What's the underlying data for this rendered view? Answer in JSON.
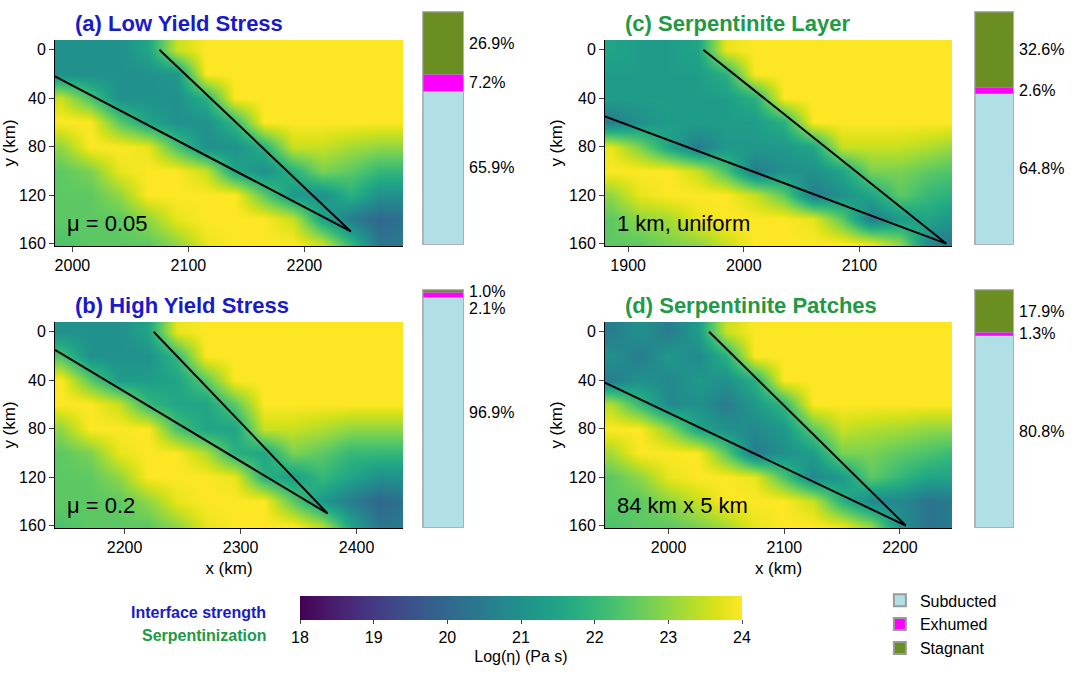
{
  "chart_data": [
    {
      "type": "heatmap",
      "title": "(a) Low Yield Stress",
      "color": "#1a1acd",
      "annotation": "μ = 0.05",
      "y_label": "y (km)",
      "xlim": [
        1985,
        2285
      ],
      "xticks": [
        2000,
        2100,
        2200
      ],
      "ylim": [
        162,
        -8
      ],
      "yticks": [
        0,
        40,
        80,
        120,
        160
      ],
      "x": [
        1990,
        2015,
        2040,
        2065,
        2090,
        2115,
        2140,
        2165,
        2190,
        2215,
        2240,
        2265,
        2290
      ],
      "y": [
        0,
        20,
        40,
        60,
        80,
        100,
        120,
        140,
        160
      ],
      "z": [
        [
          21,
          21,
          21,
          21.5,
          23.5,
          24,
          24,
          24,
          24,
          24,
          24,
          24,
          24
        ],
        [
          21,
          21,
          21,
          21,
          21.2,
          24,
          24,
          24,
          24,
          24,
          24,
          24,
          24
        ],
        [
          23.5,
          22.3,
          21,
          21,
          21,
          21.8,
          24,
          24,
          24,
          24,
          24,
          24,
          24
        ],
        [
          24,
          24,
          22.5,
          21.5,
          21,
          21,
          22,
          24,
          24,
          24,
          24,
          24,
          24
        ],
        [
          23,
          24,
          24,
          23.8,
          22.3,
          21,
          21,
          21.8,
          23.5,
          23.5,
          23.2,
          23,
          23
        ],
        [
          22.5,
          22.8,
          23.8,
          24,
          24,
          23.5,
          21.5,
          21,
          21.8,
          22.8,
          22.5,
          22,
          22
        ],
        [
          22.5,
          22.5,
          23,
          24,
          24,
          24,
          24,
          22.5,
          21.2,
          21,
          21.8,
          21,
          21
        ],
        [
          22.5,
          22.5,
          22.5,
          23,
          23.8,
          24,
          24,
          24,
          23.5,
          21.5,
          20.5,
          20,
          20.3
        ],
        [
          22.3,
          22.5,
          22.5,
          22.5,
          23,
          23.8,
          24,
          24,
          24,
          23.5,
          22,
          20.3,
          20.5
        ]
      ],
      "series": [
        {
          "type": "line",
          "color": "#000000",
          "x": [
            1985,
            2240
          ],
          "y": [
            22,
            150
          ]
        },
        {
          "type": "line",
          "color": "#000000",
          "x": [
            2075,
            2240
          ],
          "y": [
            0,
            150
          ]
        }
      ]
    },
    {
      "type": "heatmap",
      "title": "(b) High Yield Stress",
      "color": "#1a1acd",
      "annotation": "μ = 0.2",
      "x_label": "x (km)",
      "y_label": "y (km)",
      "xlim": [
        2140,
        2440
      ],
      "xticks": [
        2200,
        2300,
        2400
      ],
      "ylim": [
        162,
        -8
      ],
      "yticks": [
        0,
        40,
        80,
        120,
        160
      ],
      "x": [
        2145,
        2170,
        2195,
        2220,
        2245,
        2270,
        2295,
        2320,
        2345,
        2370,
        2395,
        2420,
        2445
      ],
      "y": [
        0,
        20,
        40,
        60,
        80,
        100,
        120,
        140,
        160
      ],
      "z": [
        [
          21,
          21,
          21,
          21.5,
          23.8,
          24,
          24,
          24,
          24,
          24,
          24,
          24,
          24
        ],
        [
          22.3,
          21,
          21,
          21,
          22,
          24,
          24,
          24,
          24,
          24,
          24,
          24,
          24
        ],
        [
          24,
          22.5,
          21.3,
          21.3,
          21.5,
          22.5,
          24,
          24,
          24,
          24,
          24,
          24,
          24
        ],
        [
          24,
          24,
          23.5,
          22,
          21.5,
          21.5,
          22.5,
          24,
          24,
          24,
          24,
          24,
          24
        ],
        [
          23,
          24,
          24,
          24,
          22.3,
          21.5,
          21.5,
          23.5,
          23.5,
          23.3,
          23,
          23,
          23
        ],
        [
          22.5,
          22.8,
          23.8,
          24,
          24,
          23.3,
          21.8,
          21.5,
          22.8,
          22.5,
          22,
          22,
          22
        ],
        [
          22.5,
          22.5,
          23,
          24,
          24,
          24,
          23.8,
          21.8,
          21.3,
          22,
          21.5,
          21,
          21
        ],
        [
          22.5,
          22.5,
          22.5,
          23,
          23.8,
          24,
          24,
          24,
          22.5,
          21.2,
          20.5,
          20,
          20.3
        ],
        [
          22.3,
          22.5,
          22.5,
          22.5,
          23,
          23.8,
          24,
          24,
          24,
          23.3,
          21.5,
          20.3,
          20.5
        ]
      ],
      "series": [
        {
          "type": "line",
          "color": "#000000",
          "x": [
            2140,
            2375
          ],
          "y": [
            15,
            150
          ]
        },
        {
          "type": "line",
          "color": "#000000",
          "x": [
            2225,
            2375
          ],
          "y": [
            0,
            150
          ]
        }
      ]
    },
    {
      "type": "heatmap",
      "title": "(c) Serpentinite Layer",
      "color": "#229944",
      "annotation": "1 km, uniform",
      "y_label": "y (km)",
      "xlim": [
        1880,
        2180
      ],
      "xticks": [
        1900,
        2000,
        2100
      ],
      "ylim": [
        162,
        -8
      ],
      "yticks": [
        0,
        40,
        80,
        120,
        160
      ],
      "x": [
        1885,
        1910,
        1935,
        1960,
        1985,
        2010,
        2035,
        2060,
        2085,
        2110,
        2135,
        2160,
        2185
      ],
      "y": [
        0,
        20,
        40,
        60,
        80,
        100,
        120,
        140,
        160
      ],
      "z": [
        [
          21.5,
          21.3,
          21.3,
          21.5,
          23.8,
          24,
          24,
          24,
          24,
          24,
          24,
          24,
          24
        ],
        [
          21.3,
          21.3,
          21.3,
          21.3,
          21.8,
          24,
          24,
          24,
          24,
          24,
          24,
          24,
          24
        ],
        [
          21.3,
          21.3,
          21.3,
          21.3,
          21.3,
          21.8,
          24,
          24,
          24,
          24,
          24,
          24,
          24
        ],
        [
          20.5,
          21,
          21.3,
          21.3,
          21.3,
          21.3,
          21.8,
          24,
          24,
          24,
          24,
          24,
          24
        ],
        [
          23.8,
          22.8,
          21.5,
          20.5,
          21.2,
          21.2,
          21.2,
          21.5,
          23.5,
          23.5,
          23.5,
          23.3,
          23
        ],
        [
          24,
          24,
          24,
          23.5,
          22.3,
          20.5,
          21,
          21,
          21.5,
          22.8,
          22.8,
          22.5,
          22.3
        ],
        [
          23,
          23.8,
          24,
          24,
          24,
          23.5,
          22.5,
          20.5,
          21,
          21.5,
          22.5,
          22,
          21.8
        ],
        [
          22.5,
          23,
          23.2,
          23.8,
          24,
          24,
          24,
          23.8,
          22.5,
          20.5,
          21.2,
          21.5,
          21
        ],
        [
          22.5,
          22.5,
          22.8,
          23,
          23.5,
          24,
          24,
          24,
          24,
          23.8,
          23,
          20.8,
          20.3
        ]
      ],
      "series": [
        {
          "type": "line",
          "color": "#000000",
          "x": [
            1880,
            2175
          ],
          "y": [
            55,
            160
          ]
        },
        {
          "type": "line",
          "color": "#000000",
          "x": [
            1965,
            2175
          ],
          "y": [
            0,
            160
          ]
        }
      ]
    },
    {
      "type": "heatmap",
      "title": "(d) Serpentinite Patches",
      "color": "#229944",
      "annotation": "84 km x 5 km",
      "x_label": "x (km)",
      "y_label": "y (km)",
      "xlim": [
        1945,
        2245
      ],
      "xticks": [
        2000,
        2100,
        2200
      ],
      "ylim": [
        162,
        -8
      ],
      "yticks": [
        0,
        40,
        80,
        120,
        160
      ],
      "x": [
        1950,
        1975,
        2000,
        2025,
        2050,
        2075,
        2100,
        2125,
        2150,
        2175,
        2200,
        2225,
        2250
      ],
      "y": [
        0,
        20,
        40,
        60,
        80,
        100,
        120,
        140,
        160
      ],
      "z": [
        [
          20.5,
          21,
          20.5,
          21.3,
          23.5,
          24,
          24,
          24,
          24,
          24,
          24,
          24,
          24
        ],
        [
          21,
          20.5,
          21.2,
          20.8,
          21.8,
          24,
          24,
          24,
          24,
          24,
          24,
          24,
          24
        ],
        [
          20.5,
          21,
          20.8,
          21.2,
          21,
          21.8,
          24,
          24,
          24,
          24,
          24,
          24,
          24
        ],
        [
          23.3,
          22,
          20.8,
          21,
          20.5,
          21.2,
          22,
          24,
          24,
          24,
          24,
          24,
          24
        ],
        [
          24,
          24,
          23,
          21.5,
          21,
          20.8,
          21.2,
          22.5,
          23.5,
          23.3,
          23.2,
          23,
          23
        ],
        [
          23.2,
          24,
          24,
          24,
          22.5,
          20.5,
          21,
          21.3,
          22.8,
          22.8,
          22.5,
          22.3,
          22
        ],
        [
          22.5,
          23,
          23.8,
          24,
          24,
          23.8,
          22.3,
          20.8,
          21.2,
          22.5,
          22,
          21.5,
          21.5
        ],
        [
          22.5,
          22.5,
          23,
          23.5,
          24,
          24,
          24,
          23.5,
          21.8,
          20.8,
          20.8,
          20.3,
          20.5
        ],
        [
          22.3,
          22.5,
          22.5,
          22.8,
          23.2,
          23.8,
          24,
          24,
          23.8,
          23,
          21,
          20.3,
          20.5
        ]
      ],
      "series": [
        {
          "type": "line",
          "color": "#000000",
          "x": [
            1945,
            2205
          ],
          "y": [
            42,
            160
          ]
        },
        {
          "type": "line",
          "color": "#000000",
          "x": [
            2035,
            2205
          ],
          "y": [
            0,
            160
          ]
        }
      ]
    },
    {
      "type": "bar",
      "stacked": true,
      "data_labels": true,
      "tick_labels": false,
      "legend": "lower right",
      "ylim": [
        0,
        100
      ],
      "series": [
        {
          "name": "Subducted",
          "color": "#b0e0e6",
          "values": [
            65.9
          ],
          "value_labels": [
            "65.9%"
          ]
        },
        {
          "name": "Exhumed",
          "color": "#ff00ff",
          "values": [
            7.2
          ],
          "value_labels": [
            "7.2%"
          ]
        },
        {
          "name": "Stagnant",
          "color": "#6b8e23",
          "values": [
            26.9
          ],
          "value_labels": [
            "26.9%"
          ]
        }
      ]
    },
    {
      "type": "bar",
      "stacked": true,
      "data_labels": true,
      "tick_labels": false,
      "ylim": [
        0,
        100
      ],
      "series": [
        {
          "name": "Subducted",
          "color": "#b0e0e6",
          "values": [
            96.9
          ],
          "value_labels": [
            "96.9%"
          ]
        },
        {
          "name": "Exhumed",
          "color": "#ff00ff",
          "values": [
            2.1
          ],
          "value_labels": [
            "2.1%"
          ]
        },
        {
          "name": "Stagnant",
          "color": "#6b8e23",
          "values": [
            1.0
          ],
          "value_labels": [
            "1.0%"
          ]
        }
      ]
    },
    {
      "type": "bar",
      "stacked": true,
      "data_labels": true,
      "tick_labels": false,
      "ylim": [
        0,
        100
      ],
      "series": [
        {
          "name": "Subducted",
          "color": "#b0e0e6",
          "values": [
            64.8
          ],
          "value_labels": [
            "64.8%"
          ]
        },
        {
          "name": "Exhumed",
          "color": "#ff00ff",
          "values": [
            2.6
          ],
          "value_labels": [
            "2.6%"
          ]
        },
        {
          "name": "Stagnant",
          "color": "#6b8e23",
          "values": [
            32.6
          ],
          "value_labels": [
            "32.6%"
          ]
        }
      ]
    },
    {
      "type": "bar",
      "stacked": true,
      "data_labels": true,
      "tick_labels": false,
      "ylim": [
        0,
        100
      ],
      "series": [
        {
          "name": "Subducted",
          "color": "#b0e0e6",
          "values": [
            80.8
          ],
          "value_labels": [
            "80.8%"
          ]
        },
        {
          "name": "Exhumed",
          "color": "#ff00ff",
          "values": [
            1.3
          ],
          "value_labels": [
            "1.3%"
          ]
        },
        {
          "name": "Stagnant",
          "color": "#6b8e23",
          "values": [
            17.9
          ],
          "value_labels": [
            "17.9%"
          ]
        }
      ]
    }
  ],
  "colorbar": {
    "title": "Log(η) (Pa s)",
    "range": [
      18,
      24
    ],
    "ticks": [
      18,
      19,
      20,
      21,
      22,
      23,
      24
    ]
  },
  "groups": [
    {
      "text": "Interface strength",
      "color": "#1a1acd"
    },
    {
      "text": "Serpentinization",
      "color": "#229944"
    }
  ]
}
